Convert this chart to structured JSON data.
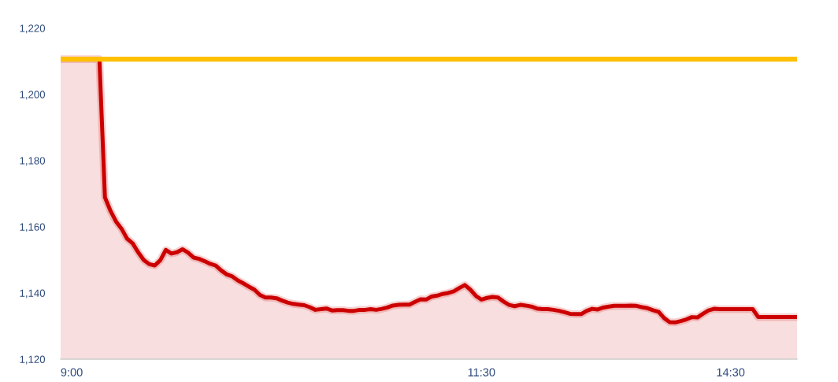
{
  "chart_data": {
    "type": "area",
    "categories": [
      null,
      null,
      "9:00",
      null,
      null,
      null,
      null,
      null,
      null,
      null,
      null,
      null,
      null,
      null,
      null,
      null,
      null,
      null,
      null,
      null,
      null,
      null,
      null,
      null,
      null,
      null,
      null,
      null,
      null,
      null,
      null,
      null,
      null,
      null,
      null,
      null,
      null,
      null,
      null,
      null,
      null,
      null,
      null,
      null,
      null,
      null,
      null,
      null,
      null,
      null,
      null,
      null,
      null,
      null,
      null,
      null,
      null,
      null,
      null,
      null,
      null,
      null,
      null,
      null,
      null,
      null,
      null,
      null,
      null,
      null,
      null,
      null,
      null,
      null,
      null,
      null,
      "11:30",
      null,
      null,
      null,
      null,
      null,
      null,
      null,
      null,
      null,
      null,
      null,
      null,
      null,
      null,
      null,
      null,
      null,
      null,
      null,
      null,
      null,
      null,
      null,
      null,
      null,
      null,
      null,
      null,
      null,
      null,
      null,
      null,
      null,
      null,
      null,
      null,
      null,
      null,
      null,
      null,
      null,
      null,
      null,
      null,
      "14:30",
      null,
      null,
      null,
      null,
      null,
      null,
      null,
      null,
      null,
      null,
      null,
      null
    ],
    "series": [
      {
        "color": "#cc0000",
        "values": [
          1210.6,
          1210.6,
          1210.6,
          1210.6,
          1210.6,
          1210.6,
          1210.6,
          1210.6,
          1168.9,
          1164.8,
          1161.6,
          1159.4,
          1156.4,
          1155.0,
          1152.3,
          1150.0,
          1148.7,
          1148.3,
          1149.9,
          1153.0,
          1151.9,
          1152.3,
          1153.2,
          1152.2,
          1150.7,
          1150.3,
          1149.6,
          1148.8,
          1148.3,
          1146.8,
          1145.6,
          1145.0,
          1143.8,
          1142.9,
          1141.9,
          1141.0,
          1139.4,
          1138.6,
          1138.6,
          1138.4,
          1137.7,
          1137.1,
          1136.7,
          1136.5,
          1136.3,
          1135.7,
          1134.9,
          1135.1,
          1135.3,
          1134.7,
          1134.8,
          1134.8,
          1134.6,
          1134.6,
          1134.9,
          1134.9,
          1135.1,
          1134.9,
          1135.2,
          1135.6,
          1136.2,
          1136.4,
          1136.5,
          1136.5,
          1137.3,
          1138.1,
          1138.0,
          1138.9,
          1139.2,
          1139.7,
          1140.0,
          1140.5,
          1141.5,
          1142.4,
          1141.0,
          1139.1,
          1138.0,
          1138.5,
          1138.8,
          1138.6,
          1137.4,
          1136.4,
          1136.0,
          1136.4,
          1136.2,
          1135.9,
          1135.3,
          1135.1,
          1135.1,
          1134.9,
          1134.6,
          1134.2,
          1133.7,
          1133.6,
          1133.6,
          1134.6,
          1135.2,
          1135.0,
          1135.6,
          1135.9,
          1136.1,
          1136.1,
          1136.1,
          1136.2,
          1136.1,
          1135.7,
          1135.4,
          1134.8,
          1134.3,
          1132.4,
          1131.2,
          1131.1,
          1131.5,
          1132.0,
          1132.7,
          1132.6,
          1133.7,
          1134.7,
          1135.2,
          1135.1,
          1135.1,
          1135.1,
          1135.1,
          1135.1,
          1135.1,
          1135.1,
          1132.7,
          1132.7,
          1132.7,
          1132.7,
          1132.7,
          1132.7,
          1132.7,
          1132.7
        ]
      }
    ],
    "ylim": [
      1120,
      1220
    ],
    "yticks": [
      {
        "value": 1120,
        "label": "1,120"
      },
      {
        "value": 1140,
        "label": "1,140"
      },
      {
        "value": 1160,
        "label": "1,160"
      },
      {
        "value": 1180,
        "label": "1,180"
      },
      {
        "value": 1200,
        "label": "1,200"
      },
      {
        "value": 1220,
        "label": "1,220"
      }
    ],
    "ref_lines": [
      {
        "axis": "y",
        "value": 1210.6,
        "color": "#ffc000"
      }
    ]
  }
}
